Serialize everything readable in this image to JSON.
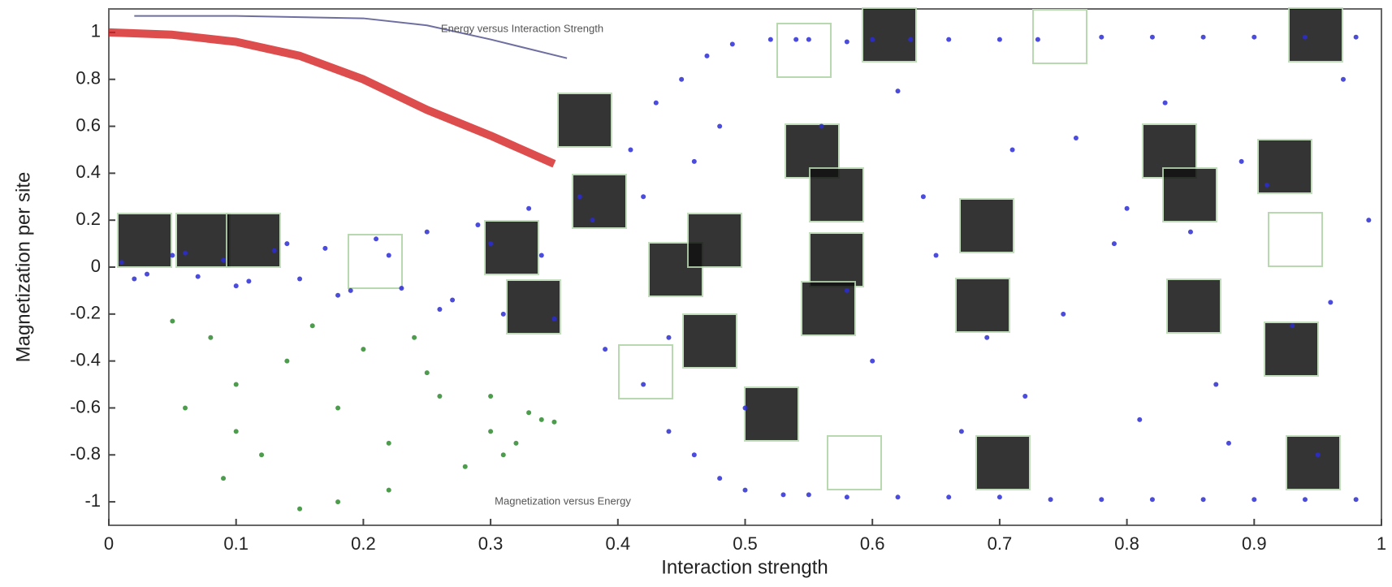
{
  "chart_data": {
    "type": "scatter",
    "x_label": "Interaction strength",
    "y_label": "Magnetization per site",
    "annotations": [
      "Energy versus Interaction Strength",
      "Magnetization versus Energy"
    ],
    "xlim": [
      0,
      1
    ],
    "xticks": [
      0,
      0.1,
      0.2,
      0.3,
      0.4,
      0.5,
      0.6,
      0.7,
      0.8,
      0.9,
      1
    ],
    "ylim": [
      -1.1,
      1.1
    ],
    "yticks": [
      -1,
      -0.8,
      -0.6,
      -0.4,
      -0.2,
      0,
      0.2,
      0.4,
      0.6,
      0.8,
      1
    ],
    "grid": false,
    "series": [
      {
        "color": "#2b2bd6",
        "style": "points",
        "x": [
          0.01,
          0.03,
          0.05,
          0.07,
          0.09,
          0.11,
          0.13,
          0.15,
          0.17,
          0.19,
          0.21,
          0.23,
          0.25,
          0.27,
          0.29,
          0.31,
          0.33,
          0.35,
          0.37,
          0.39,
          0.02,
          0.06,
          0.1,
          0.14,
          0.18,
          0.22,
          0.26,
          0.3,
          0.34,
          0.38
        ],
        "values": [
          0.02,
          -0.03,
          0.05,
          -0.04,
          0.03,
          -0.06,
          0.07,
          -0.05,
          0.08,
          -0.1,
          0.12,
          -0.09,
          0.15,
          -0.14,
          0.18,
          -0.2,
          0.25,
          -0.22,
          0.3,
          -0.35,
          -0.05,
          0.06,
          -0.08,
          0.1,
          -0.12,
          0.05,
          -0.18,
          0.1,
          0.05,
          0.2
        ]
      },
      {
        "color": "#2b2bd6",
        "style": "points",
        "x": [
          0.41,
          0.42,
          0.43,
          0.44,
          0.45,
          0.46,
          0.47,
          0.48,
          0.49,
          0.5,
          0.42,
          0.44,
          0.46,
          0.48,
          0.5,
          0.52,
          0.53,
          0.54
        ],
        "values": [
          0.5,
          -0.5,
          0.7,
          -0.7,
          0.8,
          -0.8,
          0.9,
          -0.9,
          0.95,
          -0.95,
          0.3,
          -0.3,
          0.45,
          0.6,
          -0.6,
          0.97,
          -0.97,
          0.97
        ]
      },
      {
        "color": "#2b2bd6",
        "style": "points",
        "x": [
          0.55,
          0.58,
          0.6,
          0.63,
          0.66,
          0.7,
          0.73,
          0.78,
          0.82,
          0.86,
          0.9,
          0.94,
          0.98
        ],
        "values": [
          0.97,
          0.96,
          0.97,
          0.97,
          0.97,
          0.97,
          0.97,
          0.98,
          0.98,
          0.98,
          0.98,
          0.98,
          0.98
        ]
      },
      {
        "color": "#2b2bd6",
        "style": "points",
        "x": [
          0.55,
          0.58,
          0.62,
          0.66,
          0.7,
          0.74,
          0.78,
          0.82,
          0.86,
          0.9,
          0.94,
          0.98
        ],
        "values": [
          -0.97,
          -0.98,
          -0.98,
          -0.98,
          -0.98,
          -0.99,
          -0.99,
          -0.99,
          -0.99,
          -0.99,
          -0.99,
          -0.99
        ]
      },
      {
        "color": "#2b2bd6",
        "style": "points",
        "x": [
          0.56,
          0.6,
          0.64,
          0.67,
          0.71,
          0.75,
          0.79,
          0.83,
          0.87,
          0.91,
          0.95,
          0.99,
          0.58,
          0.62,
          0.69,
          0.76,
          0.81,
          0.85,
          0.89,
          0.93,
          0.97,
          0.65,
          0.72,
          0.8,
          0.88,
          0.96
        ],
        "values": [
          0.6,
          -0.4,
          0.3,
          -0.7,
          0.5,
          -0.2,
          0.1,
          0.7,
          -0.5,
          0.35,
          -0.8,
          0.2,
          -0.1,
          0.75,
          -0.3,
          0.55,
          -0.65,
          0.15,
          0.45,
          -0.25,
          0.8,
          0.05,
          -0.55,
          0.25,
          -0.75,
          -0.15
        ]
      },
      {
        "color": "#d42020",
        "style": "band",
        "x": [
          0,
          0.05,
          0.1,
          0.15,
          0.2,
          0.25,
          0.3,
          0.35
        ],
        "values": [
          1.0,
          0.99,
          0.96,
          0.9,
          0.8,
          0.67,
          0.56,
          0.44
        ]
      },
      {
        "color": "#4a4a8a",
        "style": "line",
        "x": [
          0.02,
          0.1,
          0.2,
          0.25,
          0.3,
          0.36
        ],
        "values": [
          1.07,
          1.07,
          1.06,
          1.03,
          0.97,
          0.89
        ]
      },
      {
        "color": "#2e8b2e",
        "style": "points",
        "x": [
          0.05,
          0.08,
          0.1,
          0.12,
          0.15,
          0.18,
          0.2,
          0.22,
          0.25,
          0.28,
          0.3,
          0.32,
          0.34,
          0.35,
          0.06,
          0.1,
          0.14,
          0.18,
          0.22,
          0.26,
          0.3,
          0.33,
          0.09,
          0.16,
          0.24,
          0.31
        ],
        "values": [
          -0.23,
          -0.3,
          -0.5,
          -0.8,
          -1.03,
          -1.0,
          -0.35,
          -0.95,
          -0.45,
          -0.85,
          -0.55,
          -0.75,
          -0.65,
          -0.66,
          -0.6,
          -0.7,
          -0.4,
          -0.6,
          -0.75,
          -0.55,
          -0.7,
          -0.62,
          -0.9,
          -0.25,
          -0.3,
          -0.8
        ]
      }
    ]
  }
}
